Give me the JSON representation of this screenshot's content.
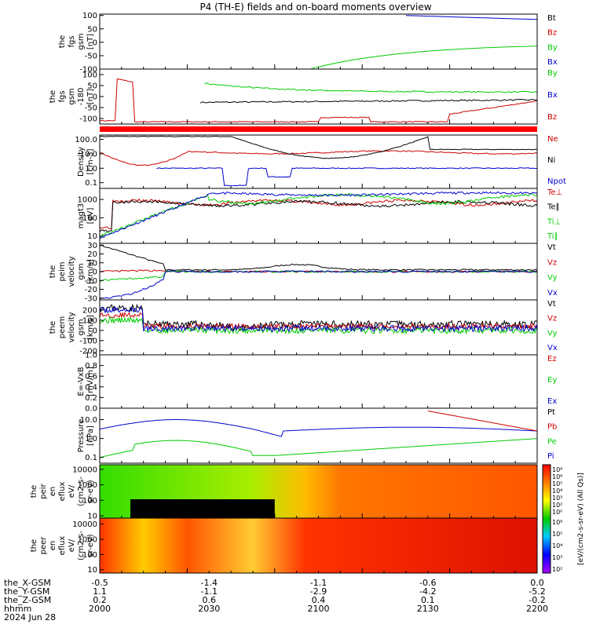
{
  "title": "P4 (TH-E) fields and on-board moments overview",
  "panels": [
    {
      "id": "fgs",
      "ylabel": [
        "the",
        "fgs",
        "gsm",
        "[nT]"
      ],
      "ticks": [
        "100",
        "50",
        "0",
        "-50",
        "-100"
      ],
      "tickv": [
        100,
        50,
        0,
        -50,
        -100
      ],
      "ymin": -100,
      "ymax": 105,
      "log": false,
      "legend": [
        {
          "t": "Bt",
          "c": "#000000"
        },
        {
          "t": "Bz",
          "c": "#cc0000"
        },
        {
          "t": "By",
          "c": "#00cc00"
        },
        {
          "t": "Bx",
          "c": "#0000cc"
        }
      ]
    },
    {
      "id": "fgs2",
      "ylabel": [
        "the",
        "fgs",
        "gsm",
        "-180",
        "[nT]"
      ],
      "ticks": [
        "100",
        "50",
        "0",
        "-50",
        "-100"
      ],
      "tickv": [
        100,
        50,
        0,
        -50,
        -100
      ],
      "ymin": -125,
      "ymax": 125,
      "log": false,
      "legend": [
        {
          "t": "By",
          "c": "#00cc00"
        },
        {
          "t": "Bx",
          "c": "#0000cc"
        },
        {
          "t": "Bz",
          "c": "#cc0000"
        }
      ]
    },
    {
      "id": "density",
      "ylabel": [
        "Density",
        "[cm-3]"
      ],
      "ticks": [
        "100.0",
        "10.0",
        "1.0",
        "0.1"
      ],
      "tickv": [
        100,
        10,
        1,
        0.1
      ],
      "ymin": 0.04,
      "ymax": 200,
      "log": true,
      "legend": [
        {
          "t": "Ne",
          "c": "#cc0000"
        },
        {
          "t": "Ni",
          "c": "#000000"
        },
        {
          "t": "Npot",
          "c": "#0000cc"
        }
      ]
    },
    {
      "id": "temp",
      "ylabel": [
        "magt3",
        "[eV]"
      ],
      "ticks": [
        "1000",
        "100",
        "10"
      ],
      "tickv": [
        1000,
        100,
        10
      ],
      "ymin": 4,
      "ymax": 4000,
      "log": true,
      "legend": [
        {
          "t": "Te⊥",
          "c": "#cc0000"
        },
        {
          "t": "Te∥",
          "c": "#000000"
        },
        {
          "t": "Ti⊥",
          "c": "#00cc00"
        },
        {
          "t": "Ti∥",
          "c": "#00cc00"
        }
      ]
    },
    {
      "id": "peimvel",
      "ylabel": [
        "the",
        "peim",
        "velocity",
        "gsm",
        "[km/s]"
      ],
      "ticks": [
        "30",
        "20",
        "10",
        "0",
        "-10",
        "-20",
        "-30"
      ],
      "tickv": [
        30,
        20,
        10,
        0,
        -10,
        -20,
        -30
      ],
      "ymin": -32,
      "ymax": 32,
      "log": false,
      "legend": [
        {
          "t": "Vt",
          "c": "#000000"
        },
        {
          "t": "Vz",
          "c": "#cc0000"
        },
        {
          "t": "Vy",
          "c": "#00cc00"
        },
        {
          "t": "Vx",
          "c": "#0000cc"
        }
      ]
    },
    {
      "id": "peemvel",
      "ylabel": [
        "the",
        "peem",
        "velocity",
        "gsm",
        "[km/s]"
      ],
      "ticks": [
        "200",
        "100",
        "0",
        "-100",
        "-200"
      ],
      "tickv": [
        200,
        100,
        0,
        -100,
        -200
      ],
      "ymin": -240,
      "ymax": 300,
      "log": false,
      "legend": [
        {
          "t": "Vt",
          "c": "#000000"
        },
        {
          "t": "Vz",
          "c": "#cc0000"
        },
        {
          "t": "Vy",
          "c": "#00cc00"
        },
        {
          "t": "Vx",
          "c": "#0000cc"
        }
      ]
    },
    {
      "id": "efield",
      "ylabel": [
        "E=-VxB",
        "[mV/m]"
      ],
      "ticks": [
        "1.0",
        "0.8",
        "0.6",
        "0.4",
        "0.2",
        "0.0"
      ],
      "tickv": [
        1.0,
        0.8,
        0.6,
        0.4,
        0.2,
        0.0
      ],
      "ymin": 0,
      "ymax": 1,
      "log": false,
      "legend": [
        {
          "t": "Ez",
          "c": "#cc0000"
        },
        {
          "t": "Ey",
          "c": "#00cc00"
        },
        {
          "t": "Ex",
          "c": "#0000cc"
        }
      ]
    },
    {
      "id": "pressure",
      "ylabel": [
        "Pressure",
        "[nPa]"
      ],
      "ticks": [
        "10.0",
        "1.0",
        "0.1"
      ],
      "tickv": [
        10,
        1,
        0.1
      ],
      "ymin": 0.05,
      "ymax": 40,
      "log": true,
      "legend": [
        {
          "t": "Pt",
          "c": "#000000"
        },
        {
          "t": "Pb",
          "c": "#cc0000"
        },
        {
          "t": "Pe",
          "c": "#00cc00"
        },
        {
          "t": "Pi",
          "c": "#0000cc"
        }
      ]
    },
    {
      "id": "peir",
      "ylabel": [
        "the",
        "peir",
        "en",
        "eflux",
        "eV/",
        "(cm2-s-",
        "sr-eV)"
      ],
      "ticks": [
        "10000",
        "1000",
        "100",
        "10"
      ],
      "tickv": [
        10000,
        1000,
        100,
        10
      ],
      "ymin": 7,
      "ymax": 20000,
      "log": true,
      "legend": []
    },
    {
      "id": "peer",
      "ylabel": [
        "the",
        "peer",
        "en",
        "eflux",
        "eV/",
        "(cm2-s-",
        "sr-eV)"
      ],
      "ticks": [
        "10000",
        "1000",
        "100",
        "10"
      ],
      "tickv": [
        10000,
        1000,
        100,
        10
      ],
      "ymin": 6,
      "ymax": 25000,
      "log": true,
      "legend": []
    }
  ],
  "colorbar": {
    "label": "[eV/(cm2-s-sr-eV) (All Qs)]",
    "labels_top": [
      "10⁸",
      "10⁶",
      "10⁵",
      "10⁴",
      "10³",
      "10²",
      "10⁰"
    ],
    "labels_bottom": [
      "10⁸",
      "10⁵",
      "10⁴",
      "10³",
      "10²"
    ]
  },
  "footer": {
    "rows": [
      {
        "label": "the_X-GSM",
        "values": [
          "-0.5",
          "-1.4",
          "-1.1",
          "-0.6",
          "0.0"
        ]
      },
      {
        "label": "the_Y-GSM",
        "values": [
          "1.1",
          "-1.1",
          "-2.9",
          "-4.2",
          "-5.2"
        ]
      },
      {
        "label": "the_Z-GSM",
        "values": [
          "0.2",
          "0.6",
          "0.4",
          "0.1",
          "-0.2"
        ]
      },
      {
        "label": "hhmm",
        "values": [
          "2000",
          "2030",
          "2100",
          "2130",
          "2200"
        ]
      }
    ],
    "date": "2024 Jun 28"
  },
  "chart_data": {
    "type": "line",
    "title": "P4 (TH-E) fields and on-board moments overview",
    "x_axis": {
      "label": "hhmm",
      "categories": [
        "2000",
        "2030",
        "2100",
        "2130",
        "2200"
      ],
      "date": "2024 Jun 28"
    },
    "series": [
      {
        "name": "Bt",
        "panel": "fgs",
        "values": [
          ">100",
          ">100",
          100,
          90,
          85
        ]
      },
      {
        "name": "By",
        "panel": "fgs",
        "values": [
          null,
          null,
          -100,
          -30,
          -5
        ]
      },
      {
        "name": "Ne",
        "panel": "density",
        "values": [
          8,
          18,
          12,
          10,
          9
        ]
      },
      {
        "name": "Ni",
        "panel": "density",
        "values": [
          150,
          30,
          60,
          20,
          12
        ]
      },
      {
        "name": "Npot",
        "panel": "density",
        "values": [
          0.15,
          1,
          0.1,
          1,
          0.9
        ]
      },
      {
        "name": "Pi",
        "panel": "pressure",
        "values": [
          3,
          10,
          0.5,
          2.5,
          2
        ]
      },
      {
        "name": "Pe",
        "panel": "pressure",
        "values": [
          0.2,
          0.8,
          0.12,
          0.7,
          1
        ]
      }
    ]
  }
}
